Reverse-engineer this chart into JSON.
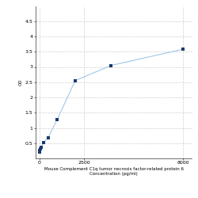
{
  "x_values": [
    0,
    31.25,
    62.5,
    125,
    250,
    500,
    1000,
    2000,
    4000,
    8000
  ],
  "y_values": [
    0.207,
    0.265,
    0.31,
    0.375,
    0.518,
    0.685,
    1.28,
    2.55,
    3.05,
    3.58
  ],
  "line_color": "#aacde8",
  "marker_color": "#1a3a6b",
  "marker_style": "s",
  "marker_size": 3,
  "line_width": 0.9,
  "xlabel_line1": "Mouse Complement C1q tumor necrosis factor-related protein 6",
  "xlabel_line2": "Concentration (pg/ml)",
  "ylabel": "OD",
  "xlim": [
    -200,
    8500
  ],
  "ylim": [
    0,
    5.0
  ],
  "yticks": [
    0.5,
    1.0,
    1.5,
    2.0,
    2.5,
    3.0,
    3.5,
    4.0,
    4.5
  ],
  "ytick_labels": [
    "0.5",
    "1",
    "1.5",
    "2",
    "2.5",
    "3",
    "3.5",
    "4",
    "4.5"
  ],
  "xticks": [
    0,
    2500,
    8000
  ],
  "xtick_labels": [
    "0",
    "2500",
    "8000"
  ],
  "grid_color": "#d0d0d0",
  "bg_color": "#ffffff",
  "tick_fontsize": 4.5,
  "label_fontsize": 4.0
}
